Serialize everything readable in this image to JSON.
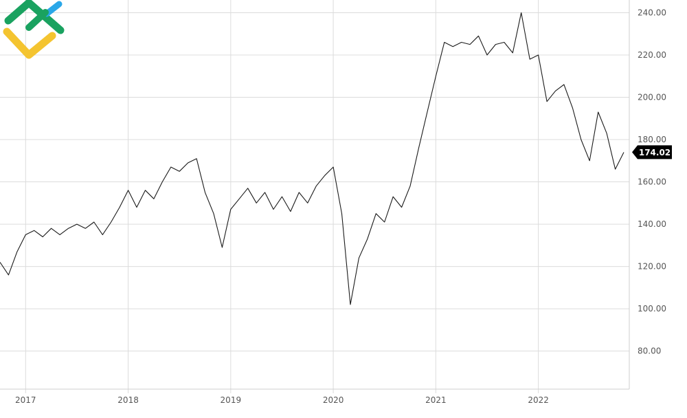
{
  "chart_data": {
    "type": "line",
    "title": "",
    "xlabel": "",
    "ylabel": "",
    "x_ticks": [
      "2017",
      "2018",
      "2019",
      "2020",
      "2021",
      "2022"
    ],
    "y_ticks": [
      "80.00",
      "100.00",
      "120.00",
      "140.00",
      "160.00",
      "180.00",
      "200.00",
      "220.00",
      "240.00"
    ],
    "ylim": [
      62,
      246
    ],
    "xlim": [
      "2016-10",
      "2022-11"
    ],
    "grid": true,
    "y_axis_side": "right",
    "last_value": "174.02",
    "series": [
      {
        "color": "#1a1a1a",
        "points": [
          [
            "2016-10",
            122
          ],
          [
            "2016-11",
            116
          ],
          [
            "2016-12",
            127
          ],
          [
            "2017-01",
            135
          ],
          [
            "2017-02",
            137
          ],
          [
            "2017-03",
            134
          ],
          [
            "2017-04",
            138
          ],
          [
            "2017-05",
            135
          ],
          [
            "2017-06",
            138
          ],
          [
            "2017-07",
            140
          ],
          [
            "2017-08",
            138
          ],
          [
            "2017-09",
            141
          ],
          [
            "2017-10",
            135
          ],
          [
            "2017-11",
            141
          ],
          [
            "2017-12",
            148
          ],
          [
            "2018-01",
            156
          ],
          [
            "2018-02",
            148
          ],
          [
            "2018-03",
            156
          ],
          [
            "2018-04",
            152
          ],
          [
            "2018-05",
            160
          ],
          [
            "2018-06",
            167
          ],
          [
            "2018-07",
            165
          ],
          [
            "2018-08",
            169
          ],
          [
            "2018-09",
            171
          ],
          [
            "2018-10",
            155
          ],
          [
            "2018-11",
            145
          ],
          [
            "2018-12",
            129
          ],
          [
            "2019-01",
            147
          ],
          [
            "2019-02",
            152
          ],
          [
            "2019-03",
            157
          ],
          [
            "2019-04",
            150
          ],
          [
            "2019-05",
            155
          ],
          [
            "2019-06",
            147
          ],
          [
            "2019-07",
            153
          ],
          [
            "2019-08",
            146
          ],
          [
            "2019-09",
            155
          ],
          [
            "2019-10",
            150
          ],
          [
            "2019-11",
            158
          ],
          [
            "2019-12",
            163
          ],
          [
            "2020-01",
            167
          ],
          [
            "2020-02",
            145
          ],
          [
            "2020-03",
            102
          ],
          [
            "2020-04",
            124
          ],
          [
            "2020-05",
            133
          ],
          [
            "2020-06",
            145
          ],
          [
            "2020-07",
            141
          ],
          [
            "2020-08",
            153
          ],
          [
            "2020-09",
            148
          ],
          [
            "2020-10",
            158
          ],
          [
            "2020-11",
            176
          ],
          [
            "2020-12",
            193
          ],
          [
            "2021-01",
            210
          ],
          [
            "2021-02",
            226
          ],
          [
            "2021-03",
            224
          ],
          [
            "2021-04",
            226
          ],
          [
            "2021-05",
            225
          ],
          [
            "2021-06",
            229
          ],
          [
            "2021-07",
            220
          ],
          [
            "2021-08",
            225
          ],
          [
            "2021-09",
            226
          ],
          [
            "2021-10",
            221
          ],
          [
            "2021-11",
            240
          ],
          [
            "2021-12",
            218
          ],
          [
            "2022-01",
            220
          ],
          [
            "2022-02",
            198
          ],
          [
            "2022-03",
            203
          ],
          [
            "2022-04",
            206
          ],
          [
            "2022-05",
            195
          ],
          [
            "2022-06",
            180
          ],
          [
            "2022-07",
            170
          ],
          [
            "2022-08",
            193
          ],
          [
            "2022-09",
            183
          ],
          [
            "2022-10",
            166
          ],
          [
            "2022-11",
            174
          ]
        ]
      }
    ]
  },
  "logo": {
    "colors": [
      "#1aa260",
      "#2aa7e8",
      "#f4c430"
    ]
  },
  "colors": {
    "grid": "#dcdcdc",
    "line": "#1a1a1a",
    "last_label_bg": "#000000"
  }
}
